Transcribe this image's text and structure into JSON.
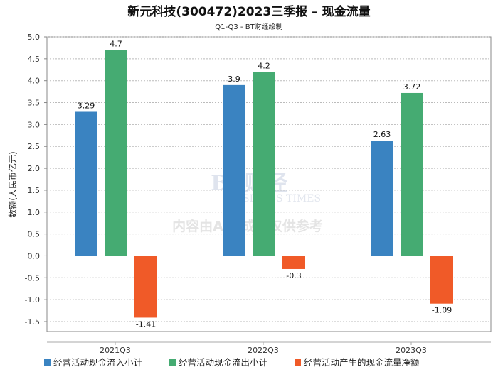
{
  "chart_data": {
    "type": "bar",
    "title": "新元科技(300472)2023三季报 – 现金流量",
    "subtitle": "Q1-Q3 - BT财经绘制",
    "ylabel": "数额(人民币亿元)",
    "xlabel": "",
    "ylim": [
      -1.5,
      5.0
    ],
    "yticks": [
      "5.0",
      "4.5",
      "4.0",
      "3.5",
      "3.0",
      "2.5",
      "2.0",
      "1.5",
      "1.0",
      "0.5",
      "0.0",
      "-0.5",
      "-1.0",
      "-1.5"
    ],
    "grid": true,
    "legend_position": "bottom",
    "categories": [
      "2021Q3",
      "2022Q3",
      "2023Q3"
    ],
    "series": [
      {
        "name": "经营活动现金流入小计",
        "color": "#3a83c1",
        "values": [
          3.29,
          3.9,
          2.63
        ],
        "labels": [
          "3.29",
          "3.9",
          "2.63"
        ]
      },
      {
        "name": "经营活动现金流出小计",
        "color": "#45ab72",
        "values": [
          4.7,
          4.2,
          3.72
        ],
        "labels": [
          "4.7",
          "4.2",
          "3.72"
        ]
      },
      {
        "name": "经营活动产生的现金流量净额",
        "color": "#f05a28",
        "values": [
          -1.41,
          -0.3,
          -1.09
        ],
        "labels": [
          "-1.41",
          "-0.3",
          "-1.09"
        ]
      }
    ]
  },
  "watermark": {
    "logo": "BT财经",
    "logo_sub": "BUSINESS TIMES",
    "notice": "内容由AI生成，仅供参考"
  }
}
